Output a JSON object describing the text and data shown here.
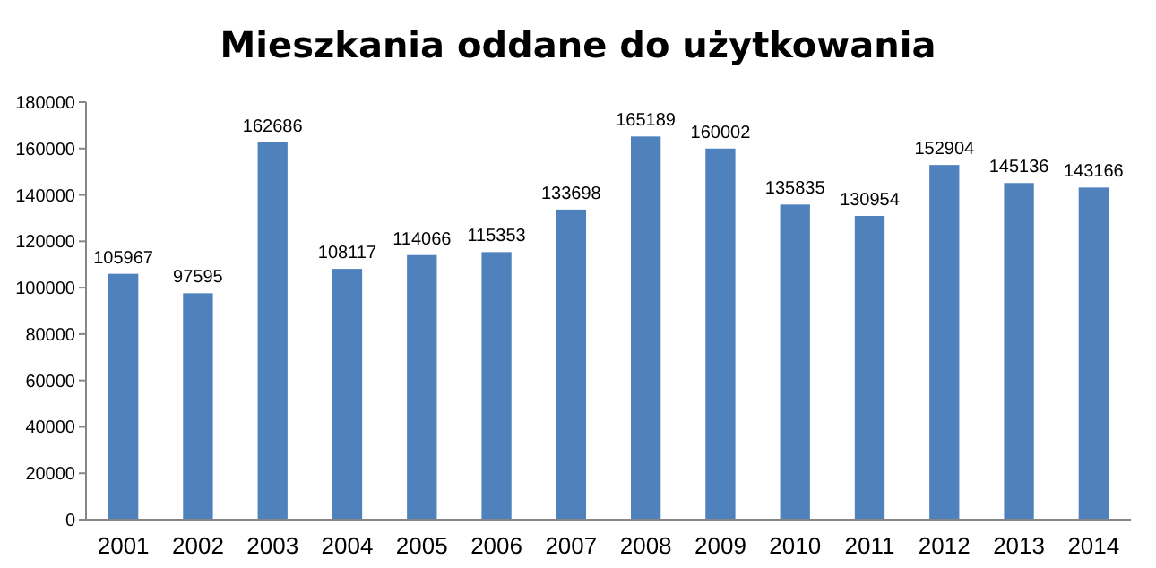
{
  "chart_data": {
    "type": "bar",
    "title": "Mieszkania oddane do użytkowania",
    "categories": [
      "2001",
      "2002",
      "2003",
      "2004",
      "2005",
      "2006",
      "2007",
      "2008",
      "2009",
      "2010",
      "2011",
      "2012",
      "2013",
      "2014"
    ],
    "values": [
      105967,
      97595,
      162686,
      108117,
      114066,
      115353,
      133698,
      165189,
      160002,
      135835,
      130954,
      152904,
      145136,
      143166
    ],
    "color": "#4f81bd",
    "ylim": [
      0,
      180000
    ],
    "yticks": [
      0,
      20000,
      40000,
      60000,
      80000,
      100000,
      120000,
      140000,
      160000,
      180000
    ],
    "data_labels": true,
    "grid": false
  }
}
